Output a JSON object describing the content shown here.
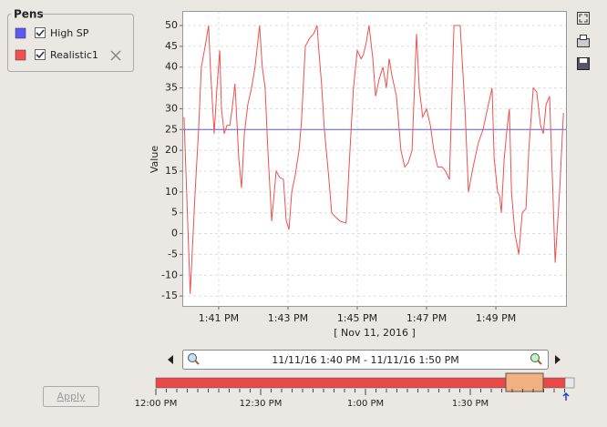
{
  "pens_title": "Pens",
  "chart_data": {
    "type": "line",
    "xlabel": "[ Nov 11, 2016 ]",
    "ylabel": "Value",
    "xlim": [
      39.95,
      51.05
    ],
    "ylim": [
      -17.6,
      53.5
    ],
    "xticks": [
      {
        "value": 41,
        "label": "1:41 PM"
      },
      {
        "value": 43,
        "label": "1:43 PM"
      },
      {
        "value": 45,
        "label": "1:45 PM"
      },
      {
        "value": 47,
        "label": "1:47 PM"
      },
      {
        "value": 49,
        "label": "1:49 PM"
      }
    ],
    "yticks": [
      -15,
      -10,
      -5,
      0,
      5,
      10,
      15,
      20,
      25,
      30,
      35,
      40,
      45,
      50
    ],
    "grid": true,
    "series": [
      {
        "name": "High SP",
        "color": "#5a5af0",
        "x": [
          39.95,
          51.05
        ],
        "values": [
          25,
          25
        ]
      },
      {
        "name": "Realistic1",
        "color": "#f05050",
        "x": [
          40.0,
          40.18,
          40.32,
          40.42,
          40.5,
          40.61,
          40.71,
          40.76,
          40.87,
          40.95,
          41.03,
          41.08,
          41.16,
          41.24,
          41.32,
          41.39,
          41.47,
          41.58,
          41.66,
          41.74,
          41.84,
          41.95,
          42.05,
          42.18,
          42.26,
          42.34,
          42.42,
          42.53,
          42.66,
          42.76,
          42.87,
          42.95,
          43.03,
          43.11,
          43.21,
          43.32,
          43.39,
          43.5,
          43.63,
          43.74,
          43.84,
          43.89,
          43.97,
          44.05,
          44.16,
          44.26,
          44.37,
          44.5,
          44.68,
          44.79,
          44.89,
          45.0,
          45.11,
          45.18,
          45.26,
          45.34,
          45.45,
          45.53,
          45.63,
          45.74,
          45.84,
          45.92,
          46.0,
          46.13,
          46.26,
          46.37,
          46.47,
          46.58,
          46.71,
          46.79,
          46.89,
          47.0,
          47.11,
          47.21,
          47.32,
          47.45,
          47.55,
          47.66,
          47.79,
          47.92,
          47.97,
          48.11,
          48.21,
          48.32,
          48.42,
          48.5,
          48.63,
          48.76,
          48.89,
          48.95,
          49.05,
          49.11,
          49.16,
          49.24,
          49.32,
          49.39,
          49.45,
          49.55,
          49.66,
          49.76,
          49.87,
          49.95,
          50.08,
          50.18,
          50.29,
          50.37,
          50.45,
          50.55,
          50.66,
          50.71,
          50.84,
          50.95
        ],
        "values": [
          28,
          -14.5,
          10,
          25,
          40,
          45,
          50,
          40,
          24,
          35,
          44,
          30,
          24,
          26,
          26,
          30,
          36,
          18,
          11,
          24,
          31,
          35,
          40,
          50,
          40,
          35,
          20,
          3,
          15,
          13.5,
          13,
          3,
          1,
          10,
          14,
          20,
          27,
          45,
          47,
          48,
          50,
          44,
          36,
          25,
          15,
          5,
          4,
          3,
          2.5,
          20,
          35,
          44,
          42,
          43,
          46,
          50,
          42,
          33,
          37,
          40,
          35,
          42,
          38,
          33,
          20,
          16,
          17,
          20,
          48,
          35,
          28,
          30,
          26,
          20,
          16,
          16,
          15,
          13,
          50,
          50,
          50,
          30,
          10,
          15,
          19,
          22,
          25,
          30,
          35,
          18,
          10,
          9,
          5,
          18,
          25,
          30,
          10,
          0,
          -5,
          5,
          6,
          20,
          35,
          34,
          26,
          24,
          31,
          33,
          6,
          -7,
          10,
          29
        ]
      }
    ]
  },
  "range_text": "11/11/16 1:40 PM - 11/11/16 1:50 PM",
  "overview_labels": [
    "12:00 PM",
    "12:30 PM",
    "1:00 PM",
    "1:30 PM"
  ],
  "apply_button": "Apply"
}
